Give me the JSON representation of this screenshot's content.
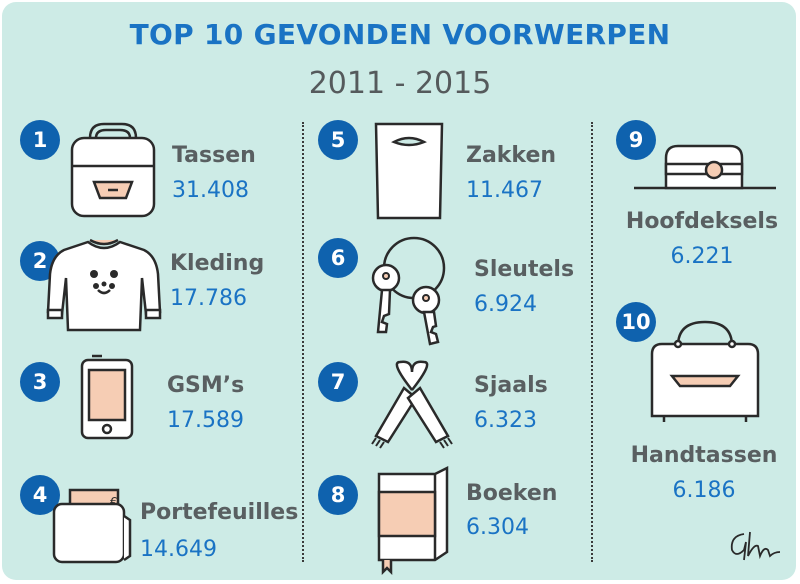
{
  "chart_data": {
    "type": "table",
    "title": "TOP 10 GEVONDEN VOORWERPEN",
    "subtitle": "2011 - 2015",
    "items": [
      {
        "rank": "1",
        "name": "Tassen",
        "value": "31.408",
        "icon": "backpack-icon"
      },
      {
        "rank": "2",
        "name": "Kleding",
        "value": "17.786",
        "icon": "sweater-icon"
      },
      {
        "rank": "3",
        "name": "GSM’s",
        "value": "17.589",
        "icon": "phone-icon"
      },
      {
        "rank": "4",
        "name": "Portefeuilles",
        "value": "14.649",
        "icon": "wallet-icon"
      },
      {
        "rank": "5",
        "name": "Zakken",
        "value": "11.467",
        "icon": "plastic-bag-icon"
      },
      {
        "rank": "6",
        "name": "Sleutels",
        "value": "6.924",
        "icon": "keys-icon"
      },
      {
        "rank": "7",
        "name": "Sjaals",
        "value": "6.323",
        "icon": "scarf-icon"
      },
      {
        "rank": "8",
        "name": "Boeken",
        "value": "6.304",
        "icon": "book-icon"
      },
      {
        "rank": "9",
        "name": "Hoofdeksels",
        "value": "6.221",
        "icon": "hat-icon"
      },
      {
        "rank": "10",
        "name": "Handtassen",
        "value": "6.186",
        "icon": "handbag-icon"
      }
    ]
  },
  "colors": {
    "background": "#cdebe6",
    "badge": "#0f62ae",
    "title": "#1a73c4",
    "value": "#1a73c4",
    "label": "#595f61",
    "accent": "#f6cdb4"
  }
}
